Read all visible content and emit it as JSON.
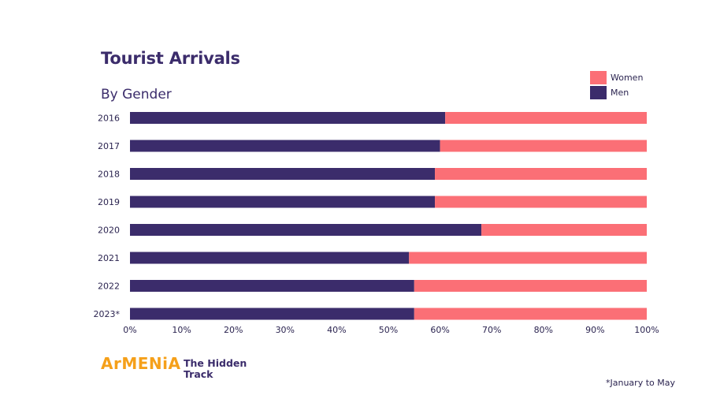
{
  "title": "Tourist Arrivals",
  "subtitle": "By Gender",
  "legend": [
    {
      "label": "Women",
      "color": "#fb6f76"
    },
    {
      "label": "Men",
      "color": "#3b2c6b"
    }
  ],
  "brand": {
    "name": "ArMENiA",
    "tagline": "The Hidden Track"
  },
  "footnote": "*January to May",
  "chart_data": {
    "type": "bar",
    "orientation": "horizontal",
    "stacked": "percent",
    "categories": [
      "2016",
      "2017",
      "2018",
      "2019",
      "2020",
      "2021",
      "2022",
      "2023*"
    ],
    "series": [
      {
        "name": "Men",
        "color": "#3b2c6b",
        "values": [
          61,
          60,
          59,
          59,
          68,
          54,
          55,
          55
        ]
      },
      {
        "name": "Women",
        "color": "#fb6f76",
        "values": [
          39,
          40,
          41,
          41,
          32,
          46,
          45,
          45
        ]
      }
    ],
    "xlim": [
      0,
      100
    ],
    "xticks": [
      "0%",
      "10%",
      "20%",
      "30%",
      "40%",
      "50%",
      "60%",
      "70%",
      "80%",
      "90%",
      "100%"
    ],
    "grid": false,
    "legend_position": "top-right"
  }
}
